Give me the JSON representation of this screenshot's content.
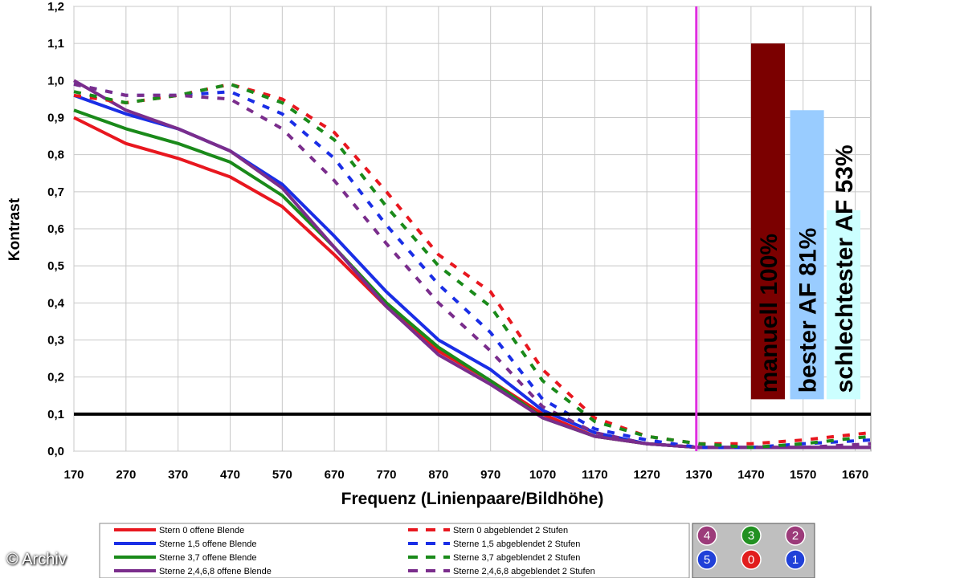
{
  "credit": "© Archiv",
  "chart_data": {
    "type": "line",
    "title": "",
    "xlabel": "Frequenz (Linienpaare/Bildhöhe)",
    "ylabel": "Kontrast",
    "xlim": [
      170,
      1700
    ],
    "ylim": [
      0,
      1.2
    ],
    "x_ticks": [
      "170",
      "270",
      "370",
      "470",
      "570",
      "670",
      "770",
      "870",
      "970",
      "1070",
      "1170",
      "1270",
      "1370",
      "1470",
      "1570",
      "1670"
    ],
    "y_ticks": [
      "0,0",
      "0,1",
      "0,2",
      "0,3",
      "0,4",
      "0,5",
      "0,6",
      "0,7",
      "0,8",
      "0,9",
      "1,0",
      "1,1",
      "1,2"
    ],
    "grid": true,
    "reference_line": {
      "y": 0.1,
      "color": "#000000"
    },
    "marker_line": {
      "x": 1365,
      "color": "#e02ee0"
    },
    "series": [
      {
        "name": "Stern 0 offene Blende",
        "color": "#e8171f",
        "dash": false,
        "x": [
          170,
          270,
          370,
          470,
          570,
          670,
          770,
          870,
          970,
          1070,
          1170,
          1270,
          1370,
          1470,
          1570,
          1700
        ],
        "y": [
          0.9,
          0.83,
          0.79,
          0.74,
          0.66,
          0.53,
          0.39,
          0.27,
          0.19,
          0.1,
          0.04,
          0.02,
          0.01,
          0.01,
          0.01,
          0.01
        ]
      },
      {
        "name": "Sterne 1,5 offene Blende",
        "color": "#1a2ee6",
        "dash": false,
        "x": [
          170,
          270,
          370,
          470,
          570,
          670,
          770,
          870,
          970,
          1070,
          1170,
          1270,
          1370,
          1470,
          1570,
          1700
        ],
        "y": [
          0.96,
          0.91,
          0.87,
          0.81,
          0.72,
          0.58,
          0.43,
          0.3,
          0.22,
          0.11,
          0.05,
          0.02,
          0.01,
          0.01,
          0.01,
          0.01
        ]
      },
      {
        "name": "Sterne 3,7 offene Blende",
        "color": "#1a8a1a",
        "dash": false,
        "x": [
          170,
          270,
          370,
          470,
          570,
          670,
          770,
          870,
          970,
          1070,
          1170,
          1270,
          1370,
          1470,
          1570,
          1700
        ],
        "y": [
          0.92,
          0.87,
          0.83,
          0.78,
          0.69,
          0.55,
          0.4,
          0.28,
          0.19,
          0.09,
          0.04,
          0.02,
          0.01,
          0.01,
          0.01,
          0.01
        ]
      },
      {
        "name": "Sterne 2,4,6,8 offene Blende",
        "color": "#7a2d8c",
        "dash": false,
        "x": [
          170,
          270,
          370,
          470,
          570,
          670,
          770,
          870,
          970,
          1070,
          1170,
          1270,
          1370,
          1470,
          1570,
          1700
        ],
        "y": [
          1.0,
          0.92,
          0.87,
          0.81,
          0.71,
          0.55,
          0.39,
          0.26,
          0.18,
          0.09,
          0.04,
          0.02,
          0.01,
          0.01,
          0.01,
          0.01
        ]
      },
      {
        "name": "Stern 0 abgeblendet 2 Stufen",
        "color": "#e8171f",
        "dash": true,
        "x": [
          170,
          270,
          370,
          470,
          570,
          670,
          770,
          870,
          970,
          1070,
          1170,
          1270,
          1370,
          1470,
          1570,
          1700
        ],
        "y": [
          0.96,
          0.94,
          0.96,
          0.99,
          0.95,
          0.86,
          0.7,
          0.53,
          0.43,
          0.22,
          0.09,
          0.04,
          0.02,
          0.02,
          0.03,
          0.05
        ]
      },
      {
        "name": "Sterne 1,5 abgeblendet 2 Stufen",
        "color": "#1a2ee6",
        "dash": true,
        "x": [
          170,
          270,
          370,
          470,
          570,
          670,
          770,
          870,
          970,
          1070,
          1170,
          1270,
          1370,
          1470,
          1570,
          1700
        ],
        "y": [
          0.99,
          0.96,
          0.96,
          0.97,
          0.91,
          0.79,
          0.61,
          0.45,
          0.32,
          0.14,
          0.06,
          0.03,
          0.01,
          0.01,
          0.02,
          0.03
        ]
      },
      {
        "name": "Sterne 3,7 abgeblendet 2 Stufen",
        "color": "#1a8a1a",
        "dash": true,
        "x": [
          170,
          270,
          370,
          470,
          570,
          670,
          770,
          870,
          970,
          1070,
          1170,
          1270,
          1370,
          1470,
          1570,
          1700
        ],
        "y": [
          0.97,
          0.94,
          0.96,
          0.99,
          0.94,
          0.84,
          0.66,
          0.5,
          0.39,
          0.19,
          0.08,
          0.04,
          0.02,
          0.01,
          0.02,
          0.04
        ]
      },
      {
        "name": "Sterne 2,4,6,8 abgeblendet 2 Stufen",
        "color": "#7a2d8c",
        "dash": true,
        "x": [
          170,
          270,
          370,
          470,
          570,
          670,
          770,
          870,
          970,
          1070,
          1170,
          1270,
          1370,
          1470,
          1570,
          1700
        ],
        "y": [
          0.99,
          0.96,
          0.96,
          0.95,
          0.87,
          0.73,
          0.56,
          0.4,
          0.27,
          0.12,
          0.05,
          0.02,
          0.01,
          0.01,
          0.01,
          0.02
        ]
      }
    ],
    "bars": [
      {
        "label": "manuell 100%",
        "value": 1.1,
        "color": "#7b0000",
        "x_from": 1470,
        "x_to": 1535
      },
      {
        "label": "bester AF 81%",
        "value": 0.92,
        "color": "#99ccff",
        "x_from": 1545,
        "x_to": 1610
      },
      {
        "label": "schlechtester AF 53%",
        "value": 0.65,
        "color": "#ccffff",
        "x_from": 1615,
        "x_to": 1680
      }
    ],
    "star_positions": [
      {
        "label": "4",
        "color": "#9c3b7a"
      },
      {
        "label": "3",
        "color": "#229122"
      },
      {
        "label": "2",
        "color": "#9c3b7a"
      },
      {
        "label": "5",
        "color": "#2040d8"
      },
      {
        "label": "0",
        "color": "#e11d1d"
      },
      {
        "label": "1",
        "color": "#2040d8"
      }
    ]
  }
}
